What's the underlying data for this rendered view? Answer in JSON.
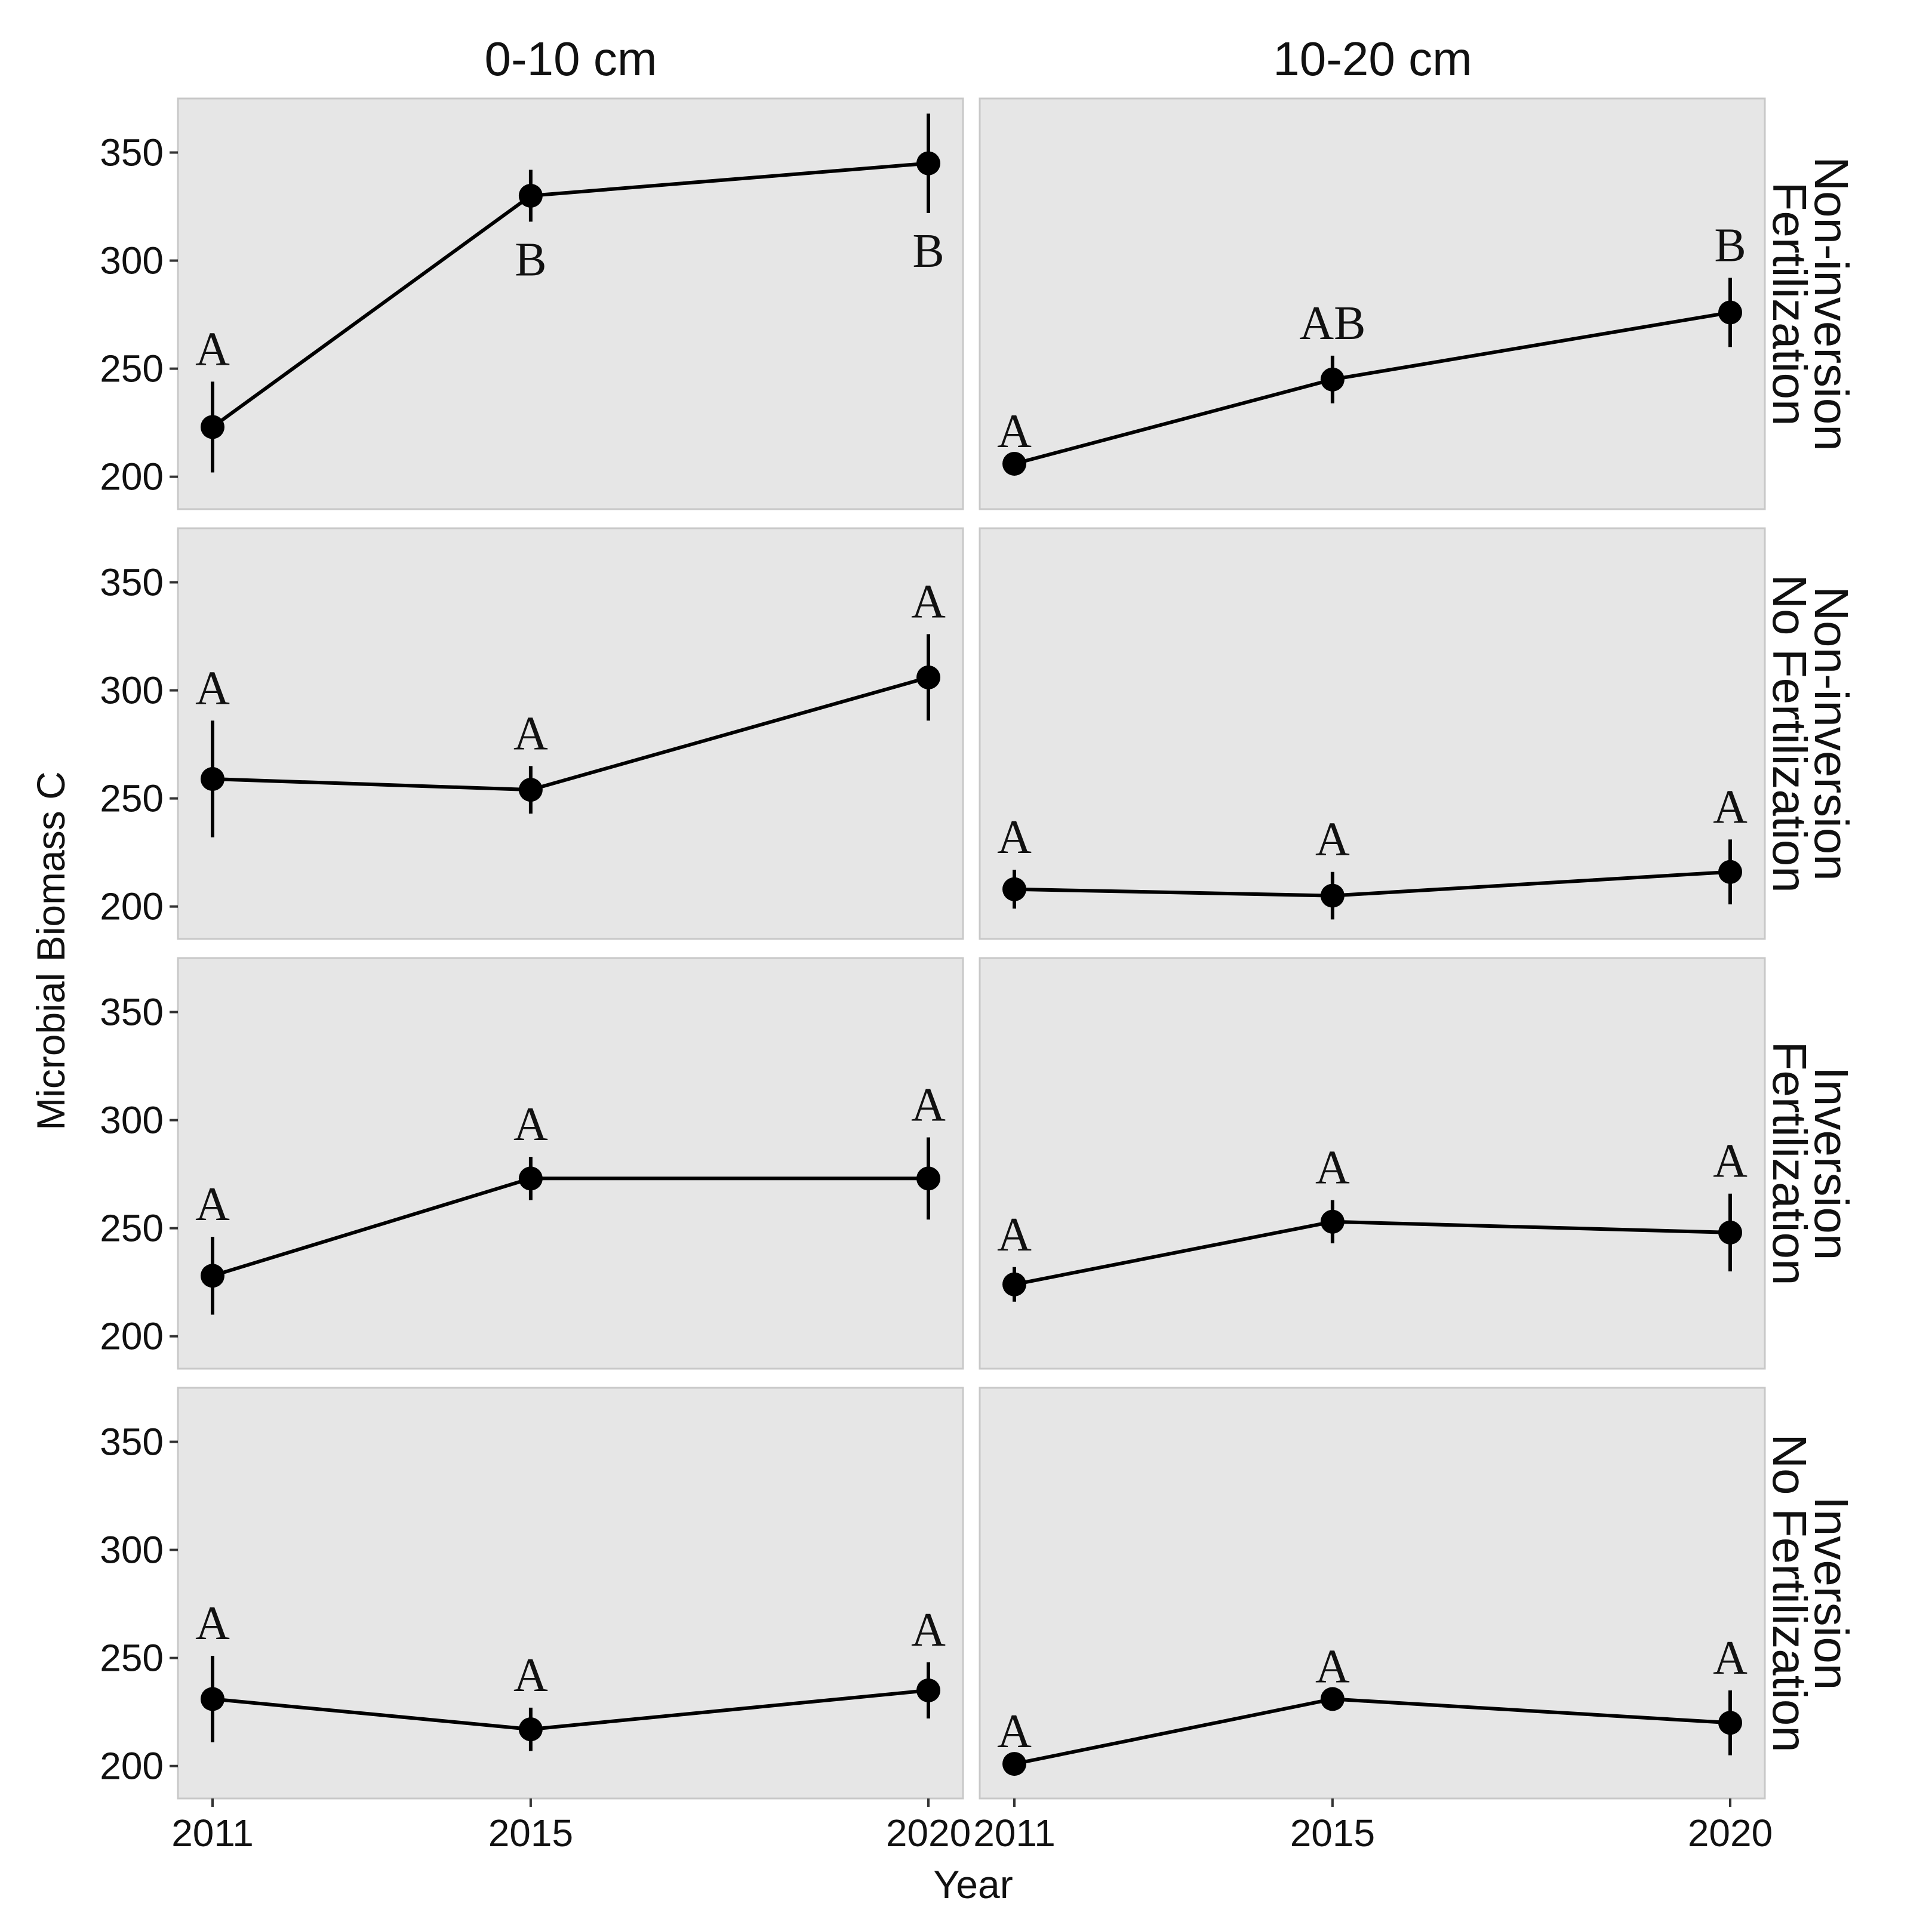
{
  "chart_data": {
    "type": "line",
    "xlabel": "Year",
    "ylabel": "Microbial Biomass C",
    "x": [
      2011,
      2015,
      2020
    ],
    "x_tick_labels": [
      "2011",
      "2015",
      "2020"
    ],
    "ylim": [
      185,
      375
    ],
    "y_ticks": [
      200,
      250,
      300,
      350
    ],
    "y_tick_labels": [
      "200",
      "250",
      "300",
      "350"
    ],
    "columns": [
      "0-10 cm",
      "10-20 cm"
    ],
    "rows": [
      [
        "Non-inversion",
        "Fertilization"
      ],
      [
        "Non-inversion",
        "No Fertilization"
      ],
      [
        "Inversion",
        "Fertilization"
      ],
      [
        "Inversion",
        "No Fertilization"
      ]
    ],
    "panels": [
      {
        "row": 0,
        "col": 0,
        "y": [
          223,
          330,
          345
        ],
        "lower": [
          202,
          318,
          322
        ],
        "upper": [
          244,
          342,
          368
        ],
        "letters": [
          "A",
          "B",
          "B"
        ],
        "letter_pos": [
          "above",
          "below",
          "below"
        ]
      },
      {
        "row": 0,
        "col": 1,
        "y": [
          206,
          245,
          276
        ],
        "lower": [
          206,
          234,
          260
        ],
        "upper": [
          206,
          256,
          292
        ],
        "letters": [
          "A",
          "AB",
          "B"
        ],
        "letter_pos": [
          "above",
          "above",
          "above"
        ]
      },
      {
        "row": 1,
        "col": 0,
        "y": [
          259,
          254,
          306
        ],
        "lower": [
          232,
          243,
          286
        ],
        "upper": [
          286,
          265,
          326
        ],
        "letters": [
          "A",
          "A",
          "A"
        ],
        "letter_pos": [
          "above",
          "above",
          "above"
        ]
      },
      {
        "row": 1,
        "col": 1,
        "y": [
          208,
          205,
          216
        ],
        "lower": [
          199,
          194,
          201
        ],
        "upper": [
          217,
          216,
          231
        ],
        "letters": [
          "A",
          "A",
          "A"
        ],
        "letter_pos": [
          "above",
          "above",
          "above"
        ]
      },
      {
        "row": 2,
        "col": 0,
        "y": [
          228,
          273,
          273
        ],
        "lower": [
          210,
          263,
          254
        ],
        "upper": [
          246,
          283,
          292
        ],
        "letters": [
          "A",
          "A",
          "A"
        ],
        "letter_pos": [
          "above",
          "above",
          "above"
        ]
      },
      {
        "row": 2,
        "col": 1,
        "y": [
          224,
          253,
          248
        ],
        "lower": [
          216,
          243,
          230
        ],
        "upper": [
          232,
          263,
          266
        ],
        "letters": [
          "A",
          "A",
          "A"
        ],
        "letter_pos": [
          "above",
          "above",
          "above"
        ]
      },
      {
        "row": 3,
        "col": 0,
        "y": [
          231,
          217,
          235
        ],
        "lower": [
          211,
          207,
          222
        ],
        "upper": [
          251,
          227,
          248
        ],
        "letters": [
          "A",
          "A",
          "A"
        ],
        "letter_pos": [
          "above",
          "above",
          "above"
        ]
      },
      {
        "row": 3,
        "col": 1,
        "y": [
          201,
          231,
          220
        ],
        "lower": [
          201,
          231,
          205
        ],
        "upper": [
          201,
          231,
          235
        ],
        "letters": [
          "A",
          "A",
          "A"
        ],
        "letter_pos": [
          "above",
          "above",
          "above"
        ]
      }
    ]
  }
}
